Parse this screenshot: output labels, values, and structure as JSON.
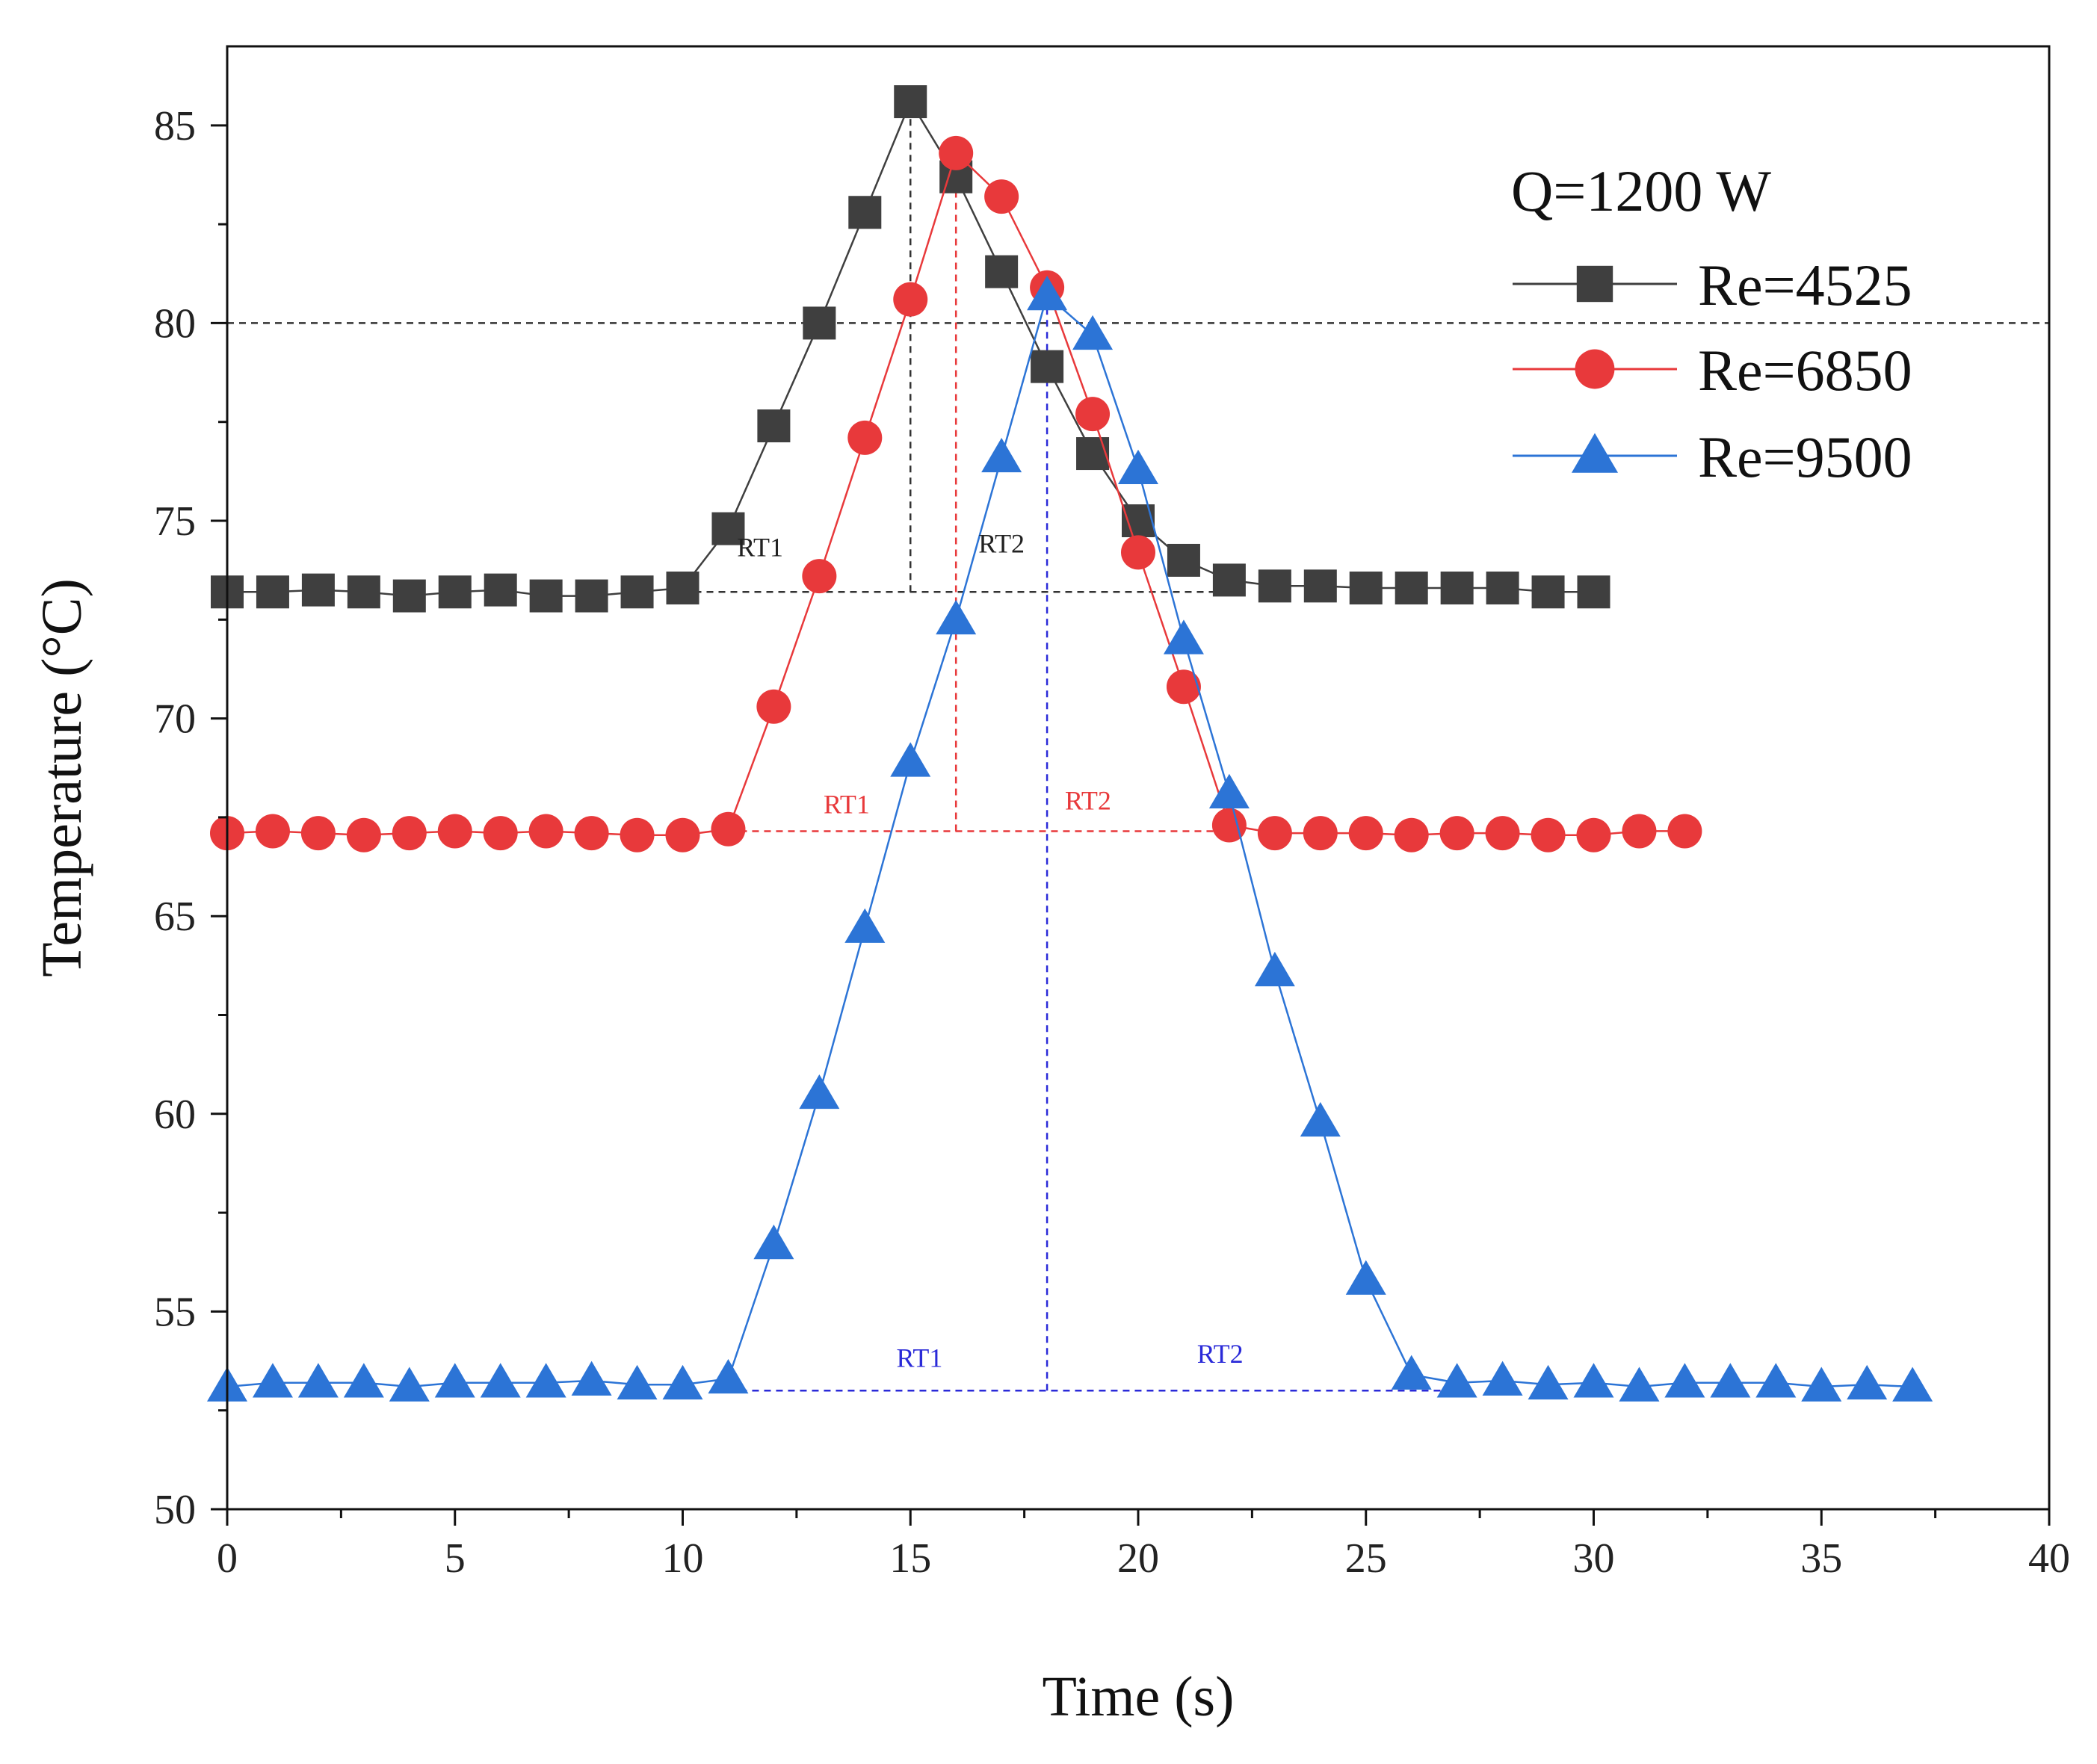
{
  "chart_data": {
    "type": "line",
    "title": "",
    "xlabel": "Time (s)",
    "ylabel": "Temperature (°C)",
    "xlim": [
      0,
      40
    ],
    "ylim": [
      50,
      87
    ],
    "x_ticks": [
      0,
      5,
      10,
      15,
      20,
      25,
      30,
      35,
      40
    ],
    "y_ticks": [
      50,
      55,
      60,
      65,
      70,
      75,
      80,
      85
    ],
    "grid": false,
    "legend": {
      "title": "Q=1200 W",
      "position": "top-right"
    },
    "series": [
      {
        "name": "Re=4525",
        "color": "#3f3f3f",
        "marker": "square",
        "x": [
          0,
          1,
          2,
          3,
          4,
          5,
          6,
          7,
          8,
          9,
          10,
          11,
          12,
          13,
          14,
          15,
          16,
          17,
          18,
          19,
          20,
          21,
          22,
          23,
          24,
          25,
          26,
          27,
          28,
          29,
          30
        ],
        "values": [
          73.2,
          73.2,
          73.25,
          73.2,
          73.1,
          73.2,
          73.25,
          73.1,
          73.1,
          73.2,
          73.3,
          74.8,
          77.4,
          80.0,
          82.8,
          85.6,
          83.7,
          81.3,
          78.9,
          76.7,
          75.0,
          74.0,
          73.5,
          73.35,
          73.35,
          73.3,
          73.3,
          73.3,
          73.3,
          73.2,
          73.2
        ]
      },
      {
        "name": "Re=6850",
        "color": "#e8393b",
        "marker": "circle",
        "x": [
          0,
          1,
          2,
          3,
          4,
          5,
          6,
          7,
          8,
          9,
          10,
          11,
          12,
          13,
          14,
          15,
          16,
          17,
          18,
          19,
          20,
          21,
          22,
          23,
          24,
          25,
          26,
          27,
          28,
          29,
          30,
          31,
          32
        ],
        "values": [
          67.1,
          67.15,
          67.1,
          67.05,
          67.1,
          67.15,
          67.1,
          67.15,
          67.1,
          67.05,
          67.05,
          67.2,
          70.3,
          73.6,
          77.1,
          80.6,
          84.3,
          83.2,
          80.9,
          77.7,
          74.2,
          70.8,
          67.3,
          67.1,
          67.1,
          67.1,
          67.05,
          67.1,
          67.1,
          67.05,
          67.05,
          67.15,
          67.15
        ]
      },
      {
        "name": "Re=9500",
        "color": "#2c74d6",
        "marker": "triangle",
        "x": [
          0,
          1,
          2,
          3,
          4,
          5,
          6,
          7,
          8,
          9,
          10,
          11,
          12,
          13,
          14,
          15,
          16,
          17,
          18,
          19,
          20,
          21,
          22,
          23,
          24,
          25,
          26,
          27,
          28,
          29,
          30,
          31,
          32,
          33,
          34,
          35,
          36,
          37
        ],
        "values": [
          53.1,
          53.2,
          53.2,
          53.2,
          53.1,
          53.2,
          53.2,
          53.2,
          53.25,
          53.15,
          53.15,
          53.3,
          56.7,
          60.5,
          64.7,
          68.9,
          72.5,
          76.6,
          80.7,
          79.7,
          76.3,
          72.0,
          68.1,
          63.6,
          59.8,
          55.8,
          53.4,
          53.2,
          53.25,
          53.15,
          53.2,
          53.1,
          53.2,
          53.2,
          53.2,
          53.1,
          53.15,
          53.1
        ]
      }
    ],
    "reference_lines": [
      {
        "type": "horizontal",
        "y": 80,
        "from_x": 0,
        "to_x": 40,
        "color": "#333333"
      },
      {
        "type": "horizontal",
        "y": 73.2,
        "from_x": 10,
        "to_x": 22,
        "color": "#333333"
      },
      {
        "type": "vertical",
        "x": 15,
        "from_y": 73.2,
        "to_y": 85.6,
        "color": "#333333"
      },
      {
        "type": "horizontal",
        "y": 67.15,
        "from_x": 11,
        "to_x": 22,
        "color": "#e8393b"
      },
      {
        "type": "vertical",
        "x": 16,
        "from_y": 67.15,
        "to_y": 84.3,
        "color": "#e8393b"
      },
      {
        "type": "horizontal",
        "y": 53.0,
        "from_x": 11,
        "to_x": 27,
        "color": "#2a2ad8"
      },
      {
        "type": "vertical",
        "x": 18,
        "from_y": 53.0,
        "to_y": 80.7,
        "color": "#2a2ad8"
      }
    ],
    "annotations": [
      {
        "text": "RT1",
        "x": 11.7,
        "y": 74.1,
        "color": "#222222"
      },
      {
        "text": "RT2",
        "x": 17.0,
        "y": 74.2,
        "color": "#222222"
      },
      {
        "text": "RT1",
        "x": 13.6,
        "y": 67.6,
        "color": "#e8393b"
      },
      {
        "text": "RT2",
        "x": 18.9,
        "y": 67.7,
        "color": "#e8393b"
      },
      {
        "text": "RT1",
        "x": 15.2,
        "y": 53.6,
        "color": "#2a2ad8"
      },
      {
        "text": "RT2",
        "x": 21.8,
        "y": 53.7,
        "color": "#2a2ad8"
      }
    ]
  }
}
